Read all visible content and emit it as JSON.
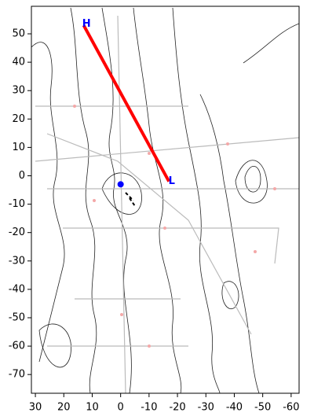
{
  "chart_data": {
    "type": "map",
    "xlim": [
      31.4,
      -62.8
    ],
    "ylim": [
      -76.6,
      59.7
    ],
    "xticks": [
      30,
      20,
      10,
      0,
      -10,
      -20,
      -30,
      -40,
      -50,
      -60
    ],
    "yticks": [
      50,
      40,
      30,
      20,
      10,
      0,
      -10,
      -20,
      -30,
      -40,
      -50,
      -60,
      -70
    ],
    "series": [
      {
        "color": "#ff0000",
        "x": [
          13,
          -17
        ],
        "values": [
          53,
          -2
        ]
      }
    ],
    "points": [
      {
        "color": "#0000ff",
        "x": 0,
        "y": -3
      }
    ],
    "markers": [
      {
        "label": "H",
        "color": "#0000ff",
        "x": 12,
        "y": 53.5
      },
      {
        "label": "L",
        "color": "#0000ff",
        "x": -18,
        "y": -2
      }
    ]
  }
}
